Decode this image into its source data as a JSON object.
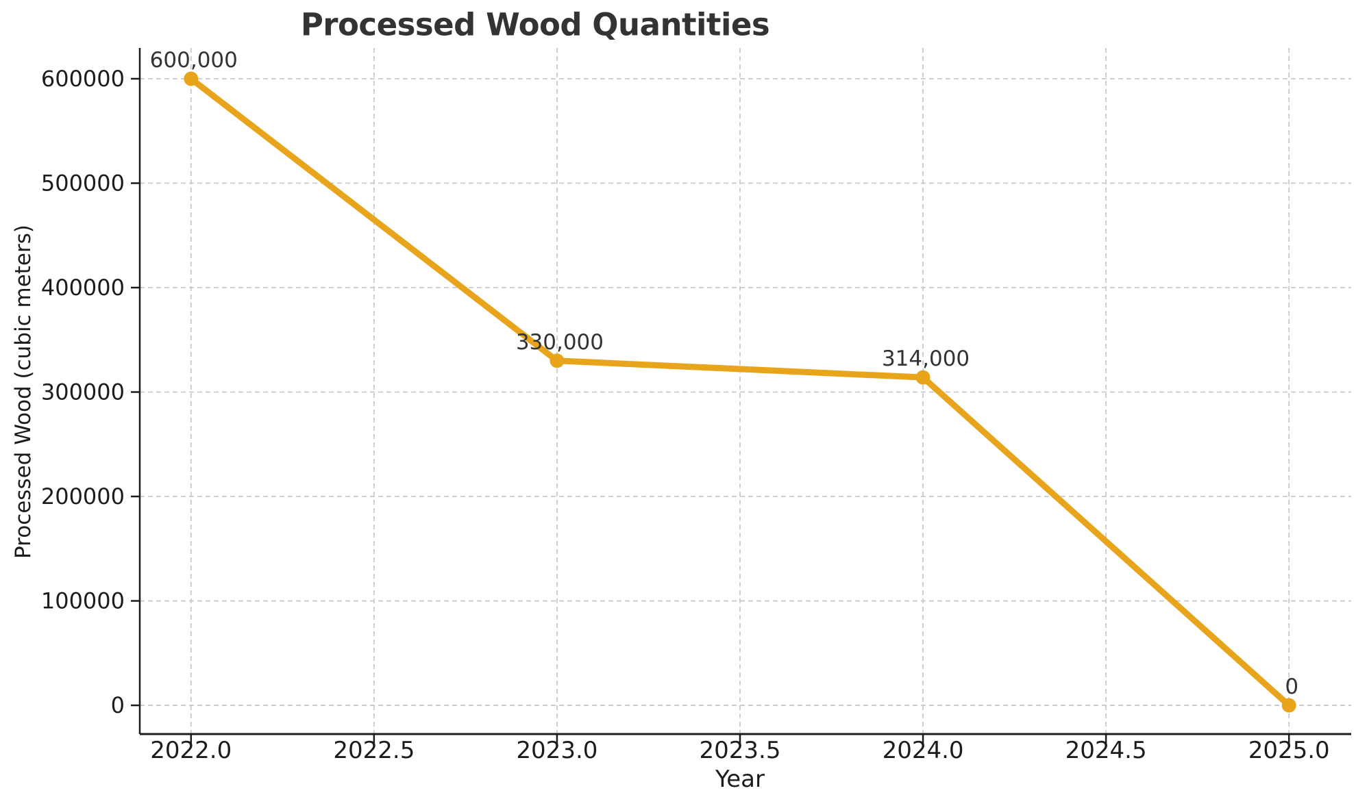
{
  "chart_data": {
    "type": "line",
    "title": "Processed Wood Quantities",
    "xlabel": "Year",
    "ylabel": "Processed Wood (cubic meters)",
    "x": [
      2022,
      2023,
      2024,
      2025
    ],
    "values": [
      600000,
      330000,
      314000,
      0
    ],
    "point_labels": [
      "600,000",
      "330,000",
      "314,000",
      "0"
    ],
    "series_name": "Processed Wood",
    "xtick_values": [
      2022.0,
      2022.5,
      2023.0,
      2023.5,
      2024.0,
      2024.5,
      2025.0
    ],
    "xtick_labels": [
      "2022.0",
      "2022.5",
      "2023.0",
      "2023.5",
      "2024.0",
      "2024.5",
      "2025.0"
    ],
    "ytick_values": [
      0,
      100000,
      200000,
      300000,
      400000,
      500000,
      600000
    ],
    "ytick_labels": [
      "0",
      "100000",
      "200000",
      "300000",
      "400000",
      "500000",
      "600000"
    ],
    "xlim": [
      2021.86,
      2025.17
    ],
    "ylim": [
      -27500,
      629500
    ],
    "grid": true,
    "grid_style": "dashed",
    "legend": null,
    "marker": "circle",
    "colors": {
      "line": "#E8A41A",
      "marker": "#E8A41A",
      "grid": "#C9C9C9",
      "spine": "#1C1C1C",
      "tick_text": "#1C1C1C",
      "annotation_text": "#333333",
      "title_text": "#333333",
      "background": "#FFFFFF"
    }
  }
}
